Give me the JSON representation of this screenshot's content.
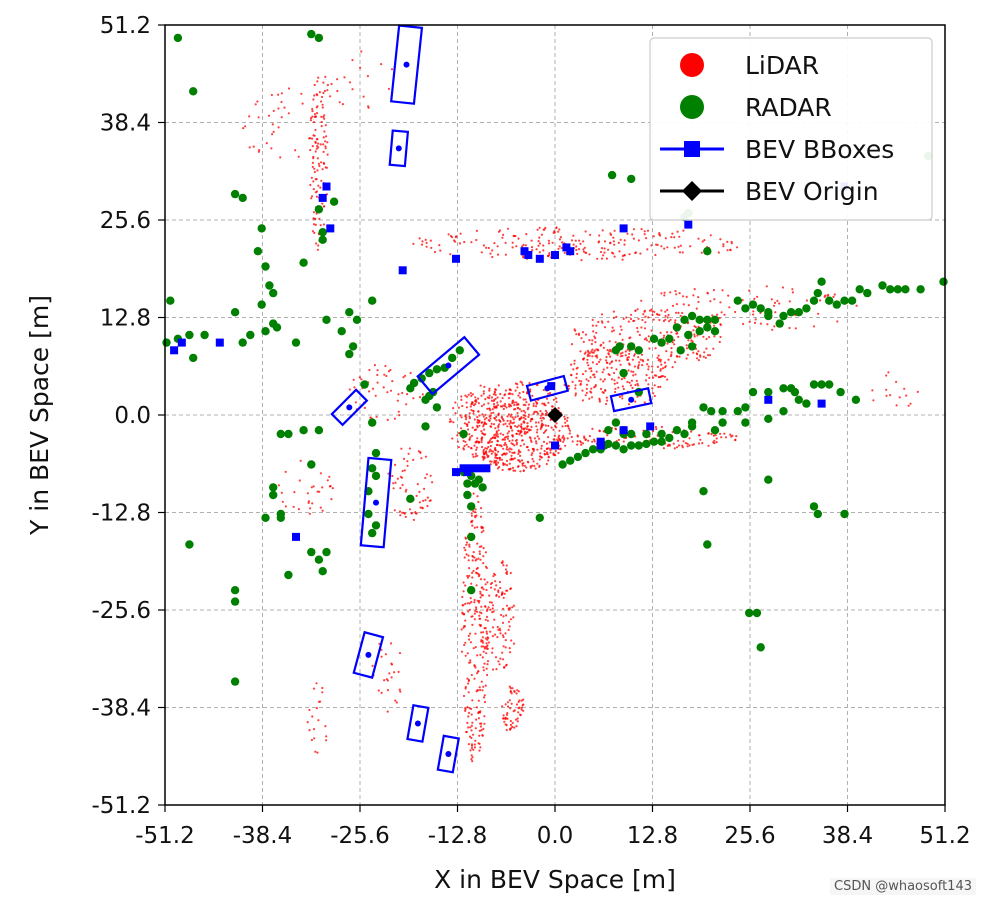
{
  "chart_data": {
    "type": "scatter",
    "title": "",
    "xlabel": "X in BEV Space [m]",
    "ylabel": "Y in BEV Space [m]",
    "xlim": [
      -51.2,
      51.2
    ],
    "ylim": [
      -51.2,
      51.2
    ],
    "xticks": [
      "-51.2",
      "-38.4",
      "-25.6",
      "-12.8",
      "0.0",
      "12.8",
      "25.6",
      "38.4",
      "51.2"
    ],
    "yticks": [
      "51.2",
      "38.4",
      "25.6",
      "12.8",
      "0.0",
      "-12.8",
      "-25.6",
      "-38.4",
      "-51.2"
    ],
    "grid": true,
    "legend_position": "top-right",
    "series": [
      {
        "name": "LiDAR",
        "color": "#ff0000",
        "marker": "small-dot"
      },
      {
        "name": "RADAR",
        "color": "#008000",
        "marker": "dot"
      },
      {
        "name": "BEV BBoxes",
        "color": "#0000ff",
        "marker": "square-line"
      },
      {
        "name": "BEV Origin",
        "color": "#000000",
        "marker": "diamond-line"
      }
    ],
    "radar_points": [
      [
        -49.5,
        49.5
      ],
      [
        -47.5,
        42.5
      ],
      [
        -42,
        29
      ],
      [
        -41,
        28.5
      ],
      [
        -38.5,
        24.5
      ],
      [
        -39,
        21.5
      ],
      [
        -38,
        19.5
      ],
      [
        -37.5,
        17
      ],
      [
        -37,
        16
      ],
      [
        -38.5,
        14.5
      ],
      [
        -42,
        13.5
      ],
      [
        -50.5,
        15
      ],
      [
        -51,
        9.5
      ],
      [
        -49.5,
        10
      ],
      [
        -47.5,
        7.5
      ],
      [
        -48,
        10.5
      ],
      [
        -46,
        10.5
      ],
      [
        -40,
        10.5
      ],
      [
        -41,
        9.5
      ],
      [
        -37,
        12
      ],
      [
        -38,
        11
      ],
      [
        -36.5,
        11.5
      ],
      [
        -34,
        9.5
      ],
      [
        -30,
        12.5
      ],
      [
        -26,
        12.5
      ],
      [
        -27,
        13.5
      ],
      [
        -24,
        15
      ],
      [
        -33,
        -2
      ],
      [
        -35,
        -2.5
      ],
      [
        -36,
        -2.5
      ],
      [
        -31,
        -2
      ],
      [
        -37,
        -9.5
      ],
      [
        -37,
        -10.5
      ],
      [
        -36,
        -13
      ],
      [
        -38,
        -13.5
      ],
      [
        -36,
        -13.5
      ],
      [
        -32,
        -6.5
      ],
      [
        -30,
        -18
      ],
      [
        -32,
        -18
      ],
      [
        -31,
        -19
      ],
      [
        -30.5,
        -20.5
      ],
      [
        -35,
        -21
      ],
      [
        -42,
        -23
      ],
      [
        -42,
        -24.5
      ],
      [
        -42,
        -35
      ],
      [
        -48,
        -17
      ],
      [
        -33,
        20
      ],
      [
        -31,
        27
      ],
      [
        -30.5,
        23
      ],
      [
        -30.5,
        24
      ],
      [
        -29,
        28
      ],
      [
        -31,
        49.5
      ],
      [
        -32,
        50
      ],
      [
        -26.5,
        9
      ],
      [
        -28,
        11
      ],
      [
        -27,
        8
      ],
      [
        -25,
        4
      ],
      [
        -24,
        -1
      ],
      [
        -19,
        -11
      ],
      [
        -24.5,
        -10
      ],
      [
        -23.5,
        -8
      ],
      [
        -24,
        -7
      ],
      [
        -23.5,
        -5
      ],
      [
        -24.5,
        -13
      ],
      [
        -23.5,
        -14.5
      ],
      [
        -24,
        -15.5
      ],
      [
        -19,
        3.5
      ],
      [
        -18.5,
        4.2
      ],
      [
        -17.5,
        4.8
      ],
      [
        -16.5,
        5.5
      ],
      [
        -15.5,
        6
      ],
      [
        -14.5,
        6.2
      ],
      [
        -13.5,
        7.5
      ],
      [
        -12.5,
        8.5
      ],
      [
        -17,
        2
      ],
      [
        -16.5,
        2.5
      ],
      [
        -16,
        3
      ],
      [
        -15.5,
        1
      ],
      [
        -17,
        -1.5
      ],
      [
        -12,
        -2.5
      ],
      [
        -11.5,
        -9
      ],
      [
        -10.5,
        -9
      ],
      [
        -9.5,
        -9.5
      ],
      [
        -10,
        -8.5
      ],
      [
        -11,
        -8
      ],
      [
        -12,
        -7.5
      ],
      [
        -11,
        -12
      ],
      [
        -11.5,
        -10.5
      ],
      [
        -11,
        -16
      ],
      [
        -11,
        -23
      ],
      [
        -2,
        -13.5
      ],
      [
        1,
        -6.5
      ],
      [
        2,
        -6
      ],
      [
        3,
        -5.5
      ],
      [
        4,
        -5
      ],
      [
        5,
        -4.5
      ],
      [
        6,
        -4.5
      ],
      [
        6.5,
        -4
      ],
      [
        7,
        -3.8
      ],
      [
        8,
        -4
      ],
      [
        9,
        -4.5
      ],
      [
        10,
        -4
      ],
      [
        11,
        -4
      ],
      [
        12,
        -3.8
      ],
      [
        13,
        -3.5
      ],
      [
        14,
        -3.5
      ],
      [
        15,
        -3
      ],
      [
        17,
        -2.5
      ],
      [
        18,
        -1
      ],
      [
        19.5,
        1
      ],
      [
        20.5,
        0.5
      ],
      [
        22,
        0.5
      ],
      [
        24,
        0.5
      ],
      [
        25,
        1
      ],
      [
        26,
        3
      ],
      [
        28,
        3
      ],
      [
        30,
        3.5
      ],
      [
        31,
        3.5
      ],
      [
        31.5,
        3
      ],
      [
        32,
        2
      ],
      [
        33,
        1.5
      ],
      [
        34,
        4
      ],
      [
        35,
        4
      ],
      [
        36,
        4
      ],
      [
        37.5,
        3
      ],
      [
        39.5,
        2
      ],
      [
        30,
        0.5
      ],
      [
        28,
        -0.5
      ],
      [
        25,
        -1
      ],
      [
        22,
        -1
      ],
      [
        21,
        -2
      ],
      [
        18,
        -1.5
      ],
      [
        16,
        -2
      ],
      [
        14,
        -2.5
      ],
      [
        12,
        -2.5
      ],
      [
        10,
        -2.5
      ],
      [
        9,
        -2
      ],
      [
        8,
        -1
      ],
      [
        11,
        3
      ],
      [
        9,
        5.5
      ],
      [
        8,
        8.5
      ],
      [
        8.5,
        9
      ],
      [
        10,
        9
      ],
      [
        11,
        8.5
      ],
      [
        13,
        10
      ],
      [
        14,
        9.5
      ],
      [
        15,
        10
      ],
      [
        16,
        11.5
      ],
      [
        17,
        12.5
      ],
      [
        18,
        13
      ],
      [
        19,
        12.5
      ],
      [
        20,
        12.5
      ],
      [
        21,
        12.5
      ],
      [
        20,
        11.5
      ],
      [
        19,
        11
      ],
      [
        17.5,
        10.5
      ],
      [
        18,
        9
      ],
      [
        16.5,
        8.5
      ],
      [
        21,
        11
      ],
      [
        24,
        15
      ],
      [
        25,
        14
      ],
      [
        26,
        14.5
      ],
      [
        27,
        14
      ],
      [
        28,
        13.5
      ],
      [
        30,
        13
      ],
      [
        31,
        13.5
      ],
      [
        32,
        13.5
      ],
      [
        33,
        14
      ],
      [
        34,
        15
      ],
      [
        34.5,
        16
      ],
      [
        35,
        17.5
      ],
      [
        36,
        15
      ],
      [
        37,
        14.5
      ],
      [
        38,
        15
      ],
      [
        39,
        15
      ],
      [
        40,
        16.5
      ],
      [
        41,
        16
      ],
      [
        43,
        17
      ],
      [
        44,
        16.5
      ],
      [
        45,
        16.5
      ],
      [
        46,
        16.5
      ],
      [
        48,
        16.5
      ],
      [
        51,
        17.5
      ],
      [
        28,
        13
      ],
      [
        29.5,
        12
      ],
      [
        19.5,
        -10
      ],
      [
        28,
        -8.5
      ],
      [
        34,
        -12
      ],
      [
        34.5,
        -13
      ],
      [
        38,
        -13
      ],
      [
        20,
        -17
      ],
      [
        25.5,
        -26
      ],
      [
        26.5,
        -26
      ],
      [
        27,
        -30.5
      ],
      [
        7.5,
        31.5
      ],
      [
        10,
        31
      ],
      [
        20,
        21.5
      ],
      [
        17.5,
        26.5
      ],
      [
        17,
        26
      ],
      [
        49,
        34
      ],
      [
        9,
        -2.5
      ],
      [
        7,
        -2
      ]
    ],
    "lidar_regions": [
      [
        [
          -9,
          1
        ],
        [
          3,
          1.5
        ],
        [
          -9,
          1
        ],
        [
          -6,
          9
        ]
      ],
      [
        [
          -8,
          -6
        ],
        [
          4,
          -2
        ]
      ],
      [
        [
          -12,
          -12
        ],
        [
          -10,
          -46
        ]
      ],
      [
        [
          -9,
          -18
        ],
        [
          -5,
          -32
        ]
      ],
      [
        [
          -7,
          -36
        ],
        [
          -4,
          -42
        ]
      ],
      [
        [
          -22,
          -6
        ],
        [
          -16,
          -14
        ]
      ],
      [
        [
          -30,
          44
        ],
        [
          -30,
          20
        ]
      ],
      [
        [
          -20,
          21
        ],
        [
          25,
          25
        ]
      ],
      [
        [
          0,
          10
        ],
        [
          45,
          20
        ]
      ],
      [
        [
          -40,
          42
        ],
        [
          -30,
          30
        ]
      ]
    ],
    "bboxes": [
      {
        "center": [
          -19.5,
          46
        ],
        "length": 10,
        "width": 3,
        "angle": 84
      },
      {
        "center": [
          -20.5,
          35
        ],
        "length": 4.5,
        "width": 2,
        "angle": 85
      },
      {
        "center": [
          -23.5,
          -11.5
        ],
        "length": 11.5,
        "width": 3,
        "angle": 85
      },
      {
        "center": [
          -14,
          6.5
        ],
        "length": 8,
        "width": 3,
        "angle": 40
      },
      {
        "center": [
          -27,
          1
        ],
        "length": 4.5,
        "width": 2,
        "angle": 45
      },
      {
        "center": [
          -24.5,
          -31.5
        ],
        "length": 5.5,
        "width": 2.5,
        "angle": 75
      },
      {
        "center": [
          -18,
          -40.5
        ],
        "length": 4.5,
        "width": 2,
        "angle": 80
      },
      {
        "center": [
          -14,
          -44.5
        ],
        "length": 4.5,
        "width": 2,
        "angle": 80
      },
      {
        "center": [
          -1,
          3.5
        ],
        "length": 5,
        "width": 2,
        "angle": 15
      },
      {
        "center": [
          10,
          2
        ],
        "length": 5,
        "width": 2,
        "angle": 12
      }
    ],
    "bbox_markers": [
      [
        -30,
        30
      ],
      [
        -30.5,
        28.5
      ],
      [
        -29.5,
        24.5
      ],
      [
        -20,
        19
      ],
      [
        -13,
        20.5
      ],
      [
        -4,
        21.5
      ],
      [
        -3.5,
        21
      ],
      [
        -2,
        20.5
      ],
      [
        0,
        21
      ],
      [
        1.5,
        22
      ],
      [
        2,
        21.5
      ],
      [
        9,
        24.5
      ],
      [
        17.5,
        25
      ],
      [
        38,
        30
      ],
      [
        -50,
        8.5
      ],
      [
        -49,
        9.5
      ],
      [
        -44,
        9.5
      ],
      [
        -34,
        -16
      ],
      [
        -12,
        -7
      ],
      [
        -11.5,
        -7.5
      ],
      [
        -11,
        -7
      ],
      [
        -10,
        -7
      ],
      [
        -9,
        -7
      ],
      [
        -13,
        -7.5
      ],
      [
        0,
        -4
      ],
      [
        6,
        -3.5
      ],
      [
        6,
        -4
      ],
      [
        9,
        -2
      ],
      [
        12.5,
        -1.5
      ],
      [
        28,
        2
      ],
      [
        35,
        1.5
      ],
      [
        -0.5,
        3.8
      ]
    ],
    "origin": [
      0.0,
      0.0
    ]
  },
  "watermark": "CSDN @whaosoft143"
}
